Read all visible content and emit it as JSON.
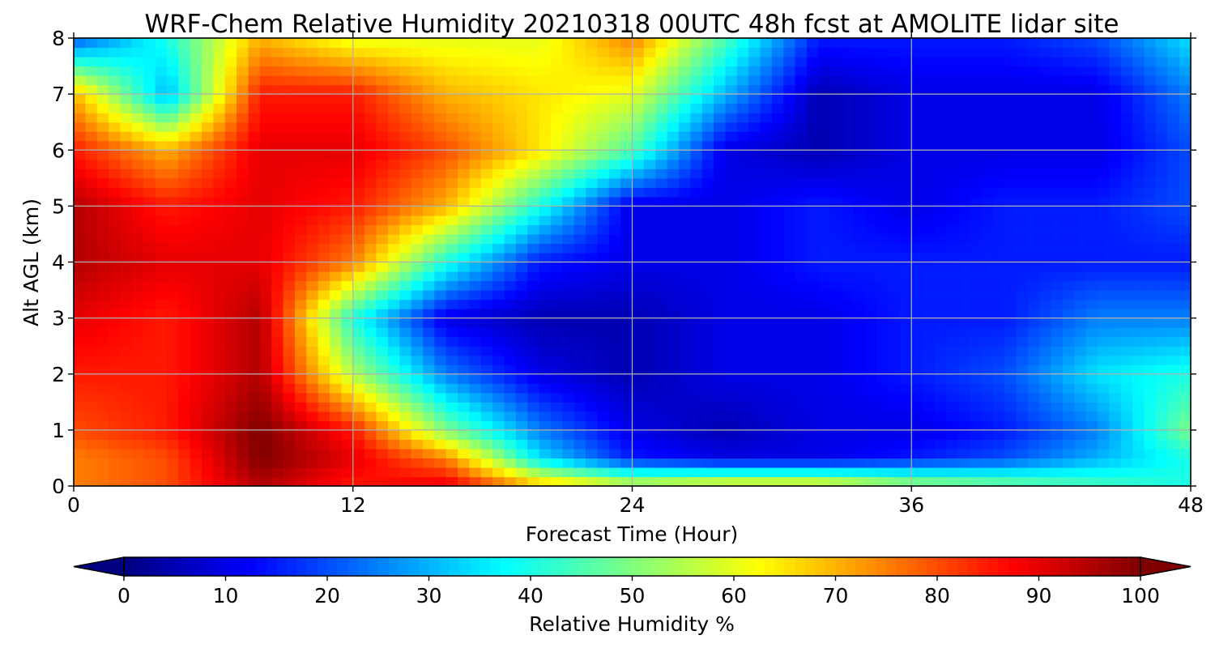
{
  "chart_data": {
    "type": "heatmap",
    "title": "WRF-Chem Relative Humidity 20210318 00UTC 48h fcst at AMOLITE lidar site",
    "xlabel": "Forecast Time (Hour)",
    "ylabel": "Alt AGL (km)",
    "xlim": [
      0,
      48
    ],
    "ylim": [
      0,
      8
    ],
    "x_ticks": [
      "0",
      "12",
      "24",
      "36",
      "48"
    ],
    "y_ticks": [
      "0",
      "1",
      "2",
      "3",
      "4",
      "5",
      "6",
      "7",
      "8"
    ],
    "grid": true,
    "colormap": "jet",
    "colorbar": {
      "label": "Relative Humidity %",
      "range": [
        0,
        100
      ],
      "extend": "both",
      "ticks": [
        "0",
        "10",
        "20",
        "30",
        "40",
        "50",
        "60",
        "70",
        "80",
        "90",
        "100"
      ]
    },
    "x_hours": [
      0,
      4,
      8,
      12,
      16,
      20,
      24,
      28,
      32,
      36,
      40,
      44,
      48
    ],
    "z_km": [
      0,
      0.5,
      1,
      2,
      3,
      4,
      5,
      6,
      7,
      8
    ],
    "rh_percent": [
      [
        75,
        80,
        95,
        85,
        90,
        70,
        60,
        65,
        65,
        55,
        50,
        45,
        40
      ],
      [
        75,
        80,
        100,
        90,
        75,
        35,
        15,
        10,
        10,
        15,
        20,
        30,
        40
      ],
      [
        80,
        85,
        100,
        85,
        50,
        25,
        10,
        5,
        10,
        10,
        15,
        25,
        50
      ],
      [
        85,
        85,
        95,
        55,
        25,
        10,
        5,
        10,
        10,
        15,
        20,
        35,
        40
      ],
      [
        90,
        85,
        95,
        40,
        10,
        5,
        5,
        10,
        10,
        15,
        15,
        25,
        25
      ],
      [
        95,
        90,
        90,
        75,
        40,
        15,
        10,
        10,
        15,
        15,
        15,
        15,
        15
      ],
      [
        95,
        85,
        90,
        85,
        70,
        40,
        10,
        10,
        15,
        10,
        15,
        15,
        20
      ],
      [
        85,
        70,
        90,
        90,
        80,
        65,
        45,
        10,
        5,
        10,
        10,
        10,
        20
      ],
      [
        70,
        30,
        85,
        85,
        70,
        65,
        60,
        30,
        5,
        10,
        10,
        10,
        25
      ],
      [
        20,
        40,
        70,
        60,
        60,
        60,
        75,
        45,
        15,
        15,
        15,
        20,
        35
      ]
    ]
  }
}
